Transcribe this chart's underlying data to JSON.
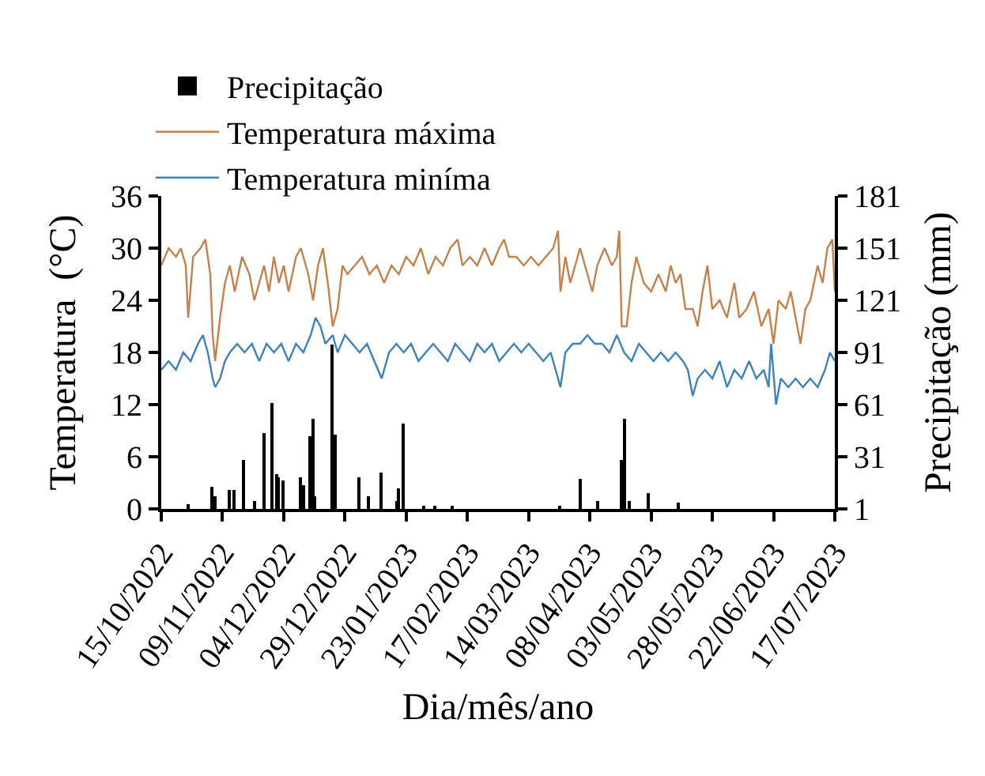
{
  "chart_data": {
    "type": "line",
    "xlabel": "Dia/mês/ano",
    "ylabel": "Temperatura  (°C)",
    "y2label": "Precipitação (mm)",
    "xlim": [
      "2022-10-15",
      "2023-07-17"
    ],
    "xticks": [
      {
        "value": "2022-10-15",
        "label": "15/10/2022"
      },
      {
        "value": "2022-11-09",
        "label": "09/11/2022"
      },
      {
        "value": "2022-12-04",
        "label": "04/12/2022"
      },
      {
        "value": "2022-12-29",
        "label": "29/12/2022"
      },
      {
        "value": "2023-01-23",
        "label": "23/01/2023"
      },
      {
        "value": "2023-02-17",
        "label": "17/02/2023"
      },
      {
        "value": "2023-03-14",
        "label": "14/03/2023"
      },
      {
        "value": "2023-04-08",
        "label": "08/04/2023"
      },
      {
        "value": "2023-05-03",
        "label": "03/05/2023"
      },
      {
        "value": "2023-05-28",
        "label": "28/05/2023"
      },
      {
        "value": "2023-06-22",
        "label": "22/06/2023"
      },
      {
        "value": "2023-07-17",
        "label": "17/07/2023"
      }
    ],
    "ylim": [
      0,
      36
    ],
    "yticks": [
      0,
      6,
      12,
      18,
      24,
      30,
      36
    ],
    "y2lim": [
      1,
      181
    ],
    "y2ticks": [
      1,
      31,
      61,
      91,
      121,
      151,
      181
    ],
    "legend": "top left",
    "marker": "none",
    "line_style": "solid",
    "series": [
      {
        "name": "Precipitação",
        "type": "bar",
        "axis": "y2",
        "color": "#000000",
        "x": [
          "2022-10-26",
          "2022-11-05",
          "2022-11-06",
          "2022-11-12",
          "2022-11-14",
          "2022-11-18",
          "2022-11-22",
          "2022-11-26",
          "2022-11-29",
          "2022-12-01",
          "2022-12-02",
          "2022-12-04",
          "2022-12-11",
          "2022-12-12",
          "2022-12-15",
          "2022-12-16",
          "2022-12-17",
          "2022-12-24",
          "2022-12-25",
          "2023-01-04",
          "2023-01-08",
          "2023-01-13",
          "2023-01-19",
          "2023-01-20",
          "2023-01-22",
          "2023-01-30",
          "2023-02-04",
          "2023-02-11",
          "2023-03-27",
          "2023-04-04",
          "2023-04-11",
          "2023-04-21",
          "2023-04-22",
          "2023-04-24",
          "2023-05-02",
          "2023-05-14"
        ],
        "values": [
          4,
          14,
          8,
          12,
          12,
          29,
          6,
          45,
          62,
          21,
          19,
          17,
          19,
          15,
          43,
          53,
          8,
          96,
          44,
          19,
          8,
          22,
          6,
          13,
          50,
          3,
          3,
          3,
          3,
          18,
          6,
          29,
          53,
          6,
          10,
          5
        ]
      },
      {
        "name": "Temperatura máxima",
        "color": "#c8804a",
        "x": [
          "2022-10-15",
          "2022-10-18",
          "2022-10-21",
          "2022-10-23",
          "2022-10-25",
          "2022-10-26",
          "2022-10-28",
          "2022-10-31",
          "2022-11-02",
          "2022-11-04",
          "2022-11-05",
          "2022-11-06",
          "2022-11-08",
          "2022-11-10",
          "2022-11-12",
          "2022-11-14",
          "2022-11-17",
          "2022-11-20",
          "2022-11-22",
          "2022-11-24",
          "2022-11-26",
          "2022-11-28",
          "2022-11-30",
          "2022-12-02",
          "2022-12-04",
          "2022-12-06",
          "2022-12-09",
          "2022-12-11",
          "2022-12-14",
          "2022-12-16",
          "2022-12-18",
          "2022-12-20",
          "2022-12-22",
          "2022-12-24",
          "2022-12-26",
          "2022-12-28",
          "2022-12-30",
          "2023-01-02",
          "2023-01-05",
          "2023-01-08",
          "2023-01-11",
          "2023-01-14",
          "2023-01-17",
          "2023-01-20",
          "2023-01-23",
          "2023-01-26",
          "2023-01-29",
          "2023-02-01",
          "2023-02-04",
          "2023-02-07",
          "2023-02-10",
          "2023-02-13",
          "2023-02-15",
          "2023-02-18",
          "2023-02-21",
          "2023-02-24",
          "2023-02-27",
          "2023-03-02",
          "2023-03-04",
          "2023-03-06",
          "2023-03-09",
          "2023-03-12",
          "2023-03-15",
          "2023-03-18",
          "2023-03-21",
          "2023-03-24",
          "2023-03-26",
          "2023-03-27",
          "2023-03-29",
          "2023-03-31",
          "2023-04-02",
          "2023-04-04",
          "2023-04-06",
          "2023-04-09",
          "2023-04-11",
          "2023-04-14",
          "2023-04-17",
          "2023-04-19",
          "2023-04-20",
          "2023-04-21",
          "2023-04-23",
          "2023-04-25",
          "2023-04-27",
          "2023-04-30",
          "2023-05-03",
          "2023-05-06",
          "2023-05-09",
          "2023-05-11",
          "2023-05-13",
          "2023-05-15",
          "2023-05-17",
          "2023-05-20",
          "2023-05-22",
          "2023-05-24",
          "2023-05-26",
          "2023-05-28",
          "2023-05-31",
          "2023-06-03",
          "2023-06-06",
          "2023-06-08",
          "2023-06-11",
          "2023-06-14",
          "2023-06-17",
          "2023-06-20",
          "2023-06-22",
          "2023-06-24",
          "2023-06-27",
          "2023-06-29",
          "2023-07-01",
          "2023-07-03",
          "2023-07-05",
          "2023-07-07",
          "2023-07-10",
          "2023-07-12",
          "2023-07-14",
          "2023-07-16",
          "2023-07-17"
        ],
        "values": [
          28,
          30,
          29,
          30,
          28,
          22,
          29,
          30,
          31,
          27,
          20,
          17,
          22,
          26,
          28,
          25,
          29,
          27,
          24,
          26,
          28,
          25,
          29,
          26,
          28,
          25,
          29,
          30,
          27,
          24,
          28,
          30,
          26,
          21,
          23,
          28,
          27,
          28,
          29,
          27,
          28,
          26,
          28,
          27,
          29,
          28,
          30,
          27,
          29,
          28,
          30,
          31,
          28,
          29,
          28,
          30,
          28,
          30,
          31,
          29,
          29,
          28,
          29,
          28,
          29,
          30,
          32,
          25,
          29,
          26,
          28,
          30,
          28,
          25,
          28,
          30,
          28,
          29,
          32,
          21,
          21,
          26,
          29,
          26,
          25,
          27,
          25,
          28,
          26,
          27,
          23,
          23,
          21,
          25,
          28,
          23,
          24,
          22,
          26,
          22,
          23,
          25,
          21,
          23,
          19,
          24,
          23,
          25,
          22,
          19,
          23,
          24,
          28,
          26,
          30,
          31,
          25
        ]
      },
      {
        "name": "Temperatura miníma",
        "color": "#3c82bc",
        "x": [
          "2022-10-15",
          "2022-10-18",
          "2022-10-21",
          "2022-10-24",
          "2022-10-27",
          "2022-10-30",
          "2022-11-01",
          "2022-11-03",
          "2022-11-05",
          "2022-11-06",
          "2022-11-08",
          "2022-11-10",
          "2022-11-12",
          "2022-11-15",
          "2022-11-18",
          "2022-11-21",
          "2022-11-24",
          "2022-11-27",
          "2022-11-30",
          "2022-12-03",
          "2022-12-06",
          "2022-12-09",
          "2022-12-12",
          "2022-12-15",
          "2022-12-17",
          "2022-12-19",
          "2022-12-21",
          "2022-12-24",
          "2022-12-26",
          "2022-12-29",
          "2023-01-01",
          "2023-01-04",
          "2023-01-07",
          "2023-01-10",
          "2023-01-13",
          "2023-01-16",
          "2023-01-19",
          "2023-01-22",
          "2023-01-25",
          "2023-01-28",
          "2023-01-31",
          "2023-02-03",
          "2023-02-06",
          "2023-02-09",
          "2023-02-12",
          "2023-02-15",
          "2023-02-18",
          "2023-02-21",
          "2023-02-24",
          "2023-02-27",
          "2023-03-02",
          "2023-03-05",
          "2023-03-08",
          "2023-03-11",
          "2023-03-14",
          "2023-03-17",
          "2023-03-20",
          "2023-03-23",
          "2023-03-25",
          "2023-03-27",
          "2023-03-29",
          "2023-04-01",
          "2023-04-04",
          "2023-04-07",
          "2023-04-10",
          "2023-04-13",
          "2023-04-16",
          "2023-04-19",
          "2023-04-22",
          "2023-04-25",
          "2023-04-28",
          "2023-05-01",
          "2023-05-04",
          "2023-05-07",
          "2023-05-10",
          "2023-05-13",
          "2023-05-16",
          "2023-05-18",
          "2023-05-20",
          "2023-05-22",
          "2023-05-25",
          "2023-05-28",
          "2023-05-31",
          "2023-06-03",
          "2023-06-06",
          "2023-06-09",
          "2023-06-12",
          "2023-06-15",
          "2023-06-18",
          "2023-06-20",
          "2023-06-21",
          "2023-06-23",
          "2023-06-25",
          "2023-06-28",
          "2023-07-01",
          "2023-07-04",
          "2023-07-07",
          "2023-07-10",
          "2023-07-13",
          "2023-07-15",
          "2023-07-17"
        ],
        "values": [
          16,
          17,
          16,
          18,
          17,
          19,
          20,
          18,
          15,
          14,
          15,
          17,
          18,
          19,
          18,
          19,
          17,
          19,
          18,
          19,
          17,
          19,
          18,
          20,
          22,
          21,
          19,
          20,
          18,
          20,
          19,
          18,
          19,
          17,
          15,
          18,
          19,
          18,
          19,
          17,
          18,
          19,
          18,
          17,
          19,
          18,
          17,
          19,
          18,
          19,
          17,
          18,
          19,
          18,
          19,
          18,
          17,
          18,
          16,
          14,
          18,
          19,
          19,
          20,
          19,
          19,
          18,
          20,
          18,
          17,
          19,
          18,
          17,
          18,
          17,
          18,
          17,
          16,
          13,
          15,
          16,
          15,
          17,
          14,
          16,
          15,
          17,
          15,
          16,
          14,
          19,
          12,
          15,
          14,
          15,
          14,
          15,
          14,
          16,
          18,
          17
        ]
      }
    ]
  }
}
